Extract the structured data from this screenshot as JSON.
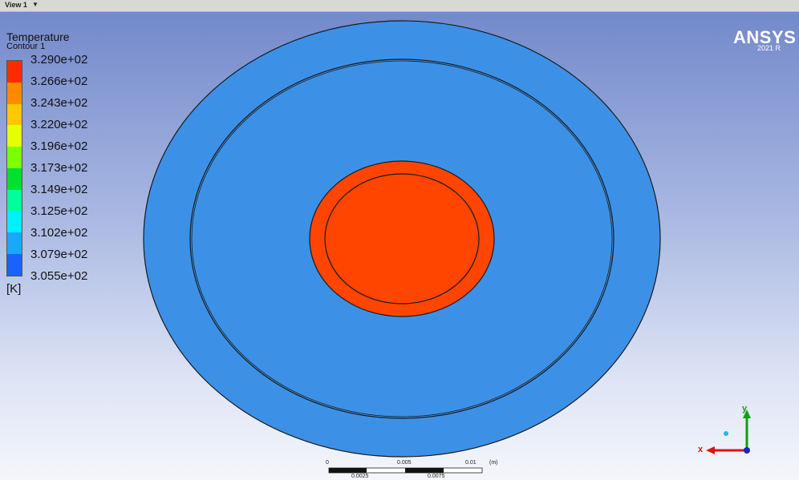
{
  "view_tab": {
    "label": "View 1",
    "arrow": "▼"
  },
  "legend": {
    "title": "Temperature",
    "subtitle": "Contour 1",
    "unit": "[K]",
    "labels": [
      "3.290e+02",
      "3.266e+02",
      "3.243e+02",
      "3.220e+02",
      "3.196e+02",
      "3.173e+02",
      "3.149e+02",
      "3.125e+02",
      "3.102e+02",
      "3.079e+02",
      "3.055e+02"
    ],
    "colors": [
      "#ff2a00",
      "#ff8a00",
      "#ffc800",
      "#e6ff00",
      "#7cff00",
      "#00e030",
      "#00ff9c",
      "#00f0ff",
      "#1aa8ff",
      "#1a62ff",
      "#0020ff"
    ]
  },
  "brand": {
    "name": "ANSYS",
    "version": "2021 R"
  },
  "geometry_colors": {
    "outer_disc": "#3c91e6",
    "inner_disc": "#ff4500",
    "outline": "#1a1a1a"
  },
  "scale_bar": {
    "top_labels": [
      "0",
      "0.005",
      "0.01",
      "(m)"
    ],
    "bottom_labels": [
      "0.0025",
      "0.0075"
    ]
  },
  "triad": {
    "x_label": "x",
    "y_label": "y",
    "x_color": "#e01010",
    "y_color": "#10a010",
    "z_color": "#2020c0"
  }
}
